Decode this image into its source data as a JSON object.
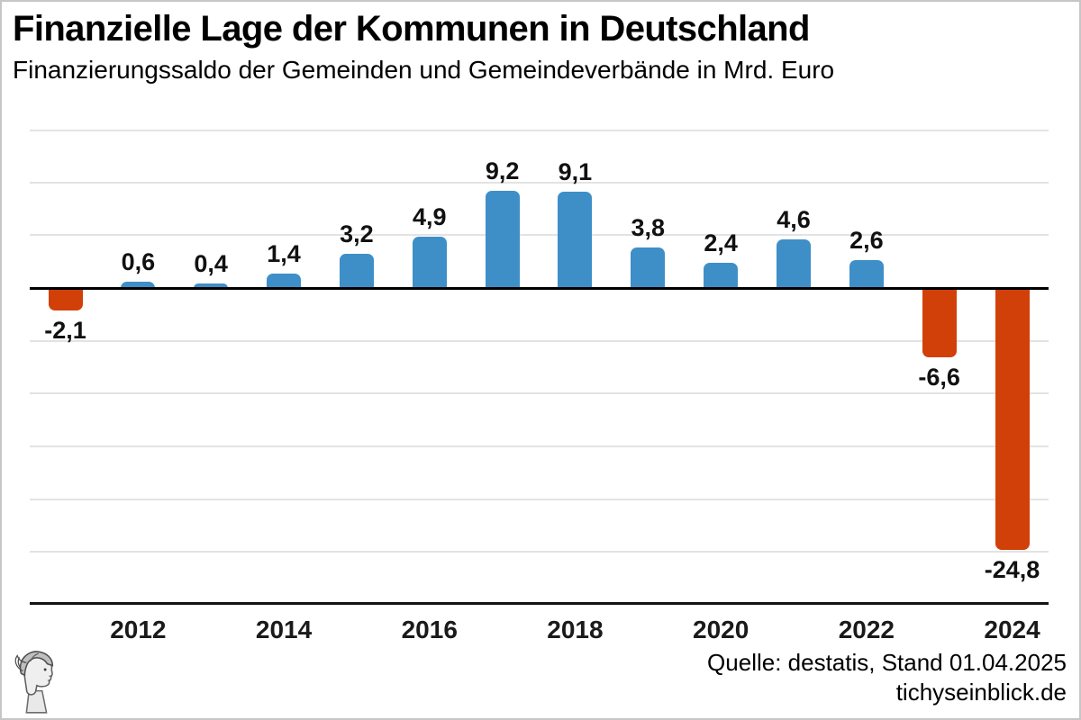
{
  "header": {
    "title": "Finanzielle Lage der Kommunen in Deutschland",
    "subtitle": "Finanzierungssaldo der Gemeinden und Gemeindeverbände in Mrd. Euro"
  },
  "footer": {
    "source": "Quelle: destatis, Stand 01.04.2025",
    "website": "tichyseinblick.de",
    "logo_icon": "classical-head-engraving-logo"
  },
  "chart_data": {
    "type": "bar",
    "title": "Finanzielle Lage der Kommunen in Deutschland",
    "subtitle": "Finanzierungssaldo der Gemeinden und Gemeindeverbände in Mrd. Euro",
    "ylabel": "Mrd. Euro",
    "xlabel": "",
    "categories": [
      "2011",
      "2012",
      "2013",
      "2014",
      "2015",
      "2016",
      "2017",
      "2018",
      "2019",
      "2020",
      "2021",
      "2022",
      "2023",
      "2024"
    ],
    "values": [
      -2.1,
      0.6,
      0.4,
      1.4,
      3.2,
      4.9,
      9.2,
      9.1,
      3.8,
      2.4,
      4.6,
      2.6,
      -6.6,
      -24.8
    ],
    "value_labels": [
      "-2,1",
      "0,6",
      "0,4",
      "1,4",
      "3,2",
      "4,9",
      "9,2",
      "9,1",
      "3,8",
      "2,4",
      "4,6",
      "2,6",
      "-6,6",
      "-24,8"
    ],
    "x_tick_labels": [
      "2012",
      "2014",
      "2016",
      "2018",
      "2020",
      "2022",
      "2024"
    ],
    "ylim": [
      -30,
      15
    ],
    "gridline_step": 5,
    "grid_on": true,
    "legend": "none",
    "colors": {
      "positive": "#3e8fc8",
      "negative": "#d2400a",
      "grid": "#e3e3e3",
      "zero_axis": "#000000",
      "bottom_axis": "#141414"
    }
  }
}
